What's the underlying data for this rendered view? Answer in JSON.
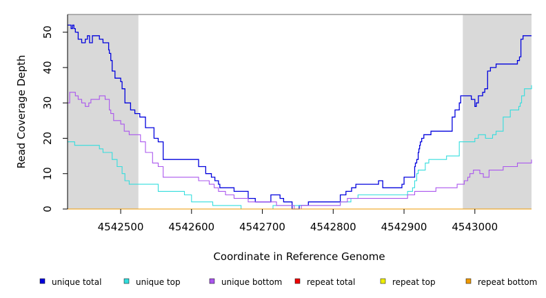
{
  "chart_data": {
    "type": "line",
    "title": "",
    "xlabel": "Coordinate in Reference Genome",
    "ylabel": "Read Coverage Depth",
    "xlim": [
      4542425,
      4543080
    ],
    "ylim": [
      0,
      55
    ],
    "x_ticks": [
      4542500,
      4542600,
      4542700,
      4542800,
      4542900,
      4543000
    ],
    "x_tick_labels": [
      "4542500",
      "4542600",
      "4542700",
      "4542800",
      "4542900",
      "4543000"
    ],
    "y_ticks": [
      0,
      10,
      20,
      30,
      40,
      50
    ],
    "y_tick_labels": [
      "0",
      "10",
      "20",
      "30",
      "40",
      "50"
    ],
    "grid": false,
    "legend_position": "bottom",
    "shaded_regions": [
      {
        "x0": 4542425,
        "x1": 4542525,
        "color": "#d9d9d9"
      },
      {
        "x0": 4542983,
        "x1": 4543080,
        "color": "#d9d9d9"
      }
    ],
    "top_line": {
      "y": 55,
      "color": "#999999"
    },
    "series": [
      {
        "name": "unique total",
        "color": "#0000dd",
        "x": [
          4542425,
          4542430,
          4542431,
          4542432,
          4542434,
          4542436,
          4542440,
          4542445,
          4542450,
          4542453,
          4542456,
          4542460,
          4542470,
          4542475,
          4542480,
          4542483,
          4542484,
          4542486,
          4542488,
          4542492,
          4542498,
          4542500,
          4542502,
          4542506,
          4542514,
          4542520,
          4542527,
          4542535,
          4542547,
          4542553,
          4542560,
          4542575,
          4542585,
          4542590,
          4542610,
          4542620,
          4542628,
          4542630,
          4542633,
          4542638,
          4542640,
          4542660,
          4542665,
          4542680,
          4542690,
          4542700,
          4542712,
          4542725,
          4542730,
          4542742,
          4542752,
          4542765,
          4542778,
          4542790,
          4542797,
          4542810,
          4542818,
          4542822,
          4542826,
          4542830,
          4542832,
          4542840,
          4542848,
          4542850,
          4542855,
          4542860,
          4542862,
          4542864,
          4542866,
          4542870,
          4542880,
          4542890,
          4542895,
          4542897,
          4542900,
          4542915,
          4542916,
          4542918,
          4542920,
          4542921,
          4542922,
          4542923,
          4542925,
          4542926,
          4542928,
          4542932,
          4542938,
          4542950,
          4542960,
          4542968,
          4542972,
          4542975,
          4542978,
          4542980,
          4542986,
          4542995,
          4543000,
          4543002,
          4543005,
          4543008,
          4543011,
          4543014,
          4543018,
          4543022,
          4543025,
          4543030,
          4543033,
          4543045,
          4543060,
          4543063,
          4543065,
          4543068,
          4543072,
          4543080
        ],
        "y": [
          52,
          51,
          51,
          52,
          51,
          50,
          48,
          47,
          48,
          49,
          47,
          49,
          48,
          47,
          47,
          45,
          44,
          42,
          39,
          37,
          37,
          36,
          34,
          30,
          28,
          27,
          26,
          23,
          20,
          19,
          14,
          14,
          14,
          14,
          12,
          10,
          9,
          9,
          8,
          7,
          6,
          5,
          5,
          3,
          2,
          2,
          4,
          3,
          2,
          0,
          1,
          2,
          2,
          2,
          2,
          4,
          5,
          5,
          6,
          6,
          7,
          7,
          7,
          7,
          7,
          7,
          7,
          8,
          8,
          6,
          6,
          6,
          6,
          7,
          9,
          12,
          13,
          14,
          16,
          17,
          18,
          19,
          20,
          20,
          21,
          21,
          22,
          22,
          22,
          26,
          28,
          28,
          30,
          32,
          32,
          31,
          29,
          30,
          32,
          32,
          33,
          34,
          39,
          40,
          40,
          41,
          41,
          41,
          42,
          43,
          48,
          49,
          49,
          49
        ],
        "visible": true
      },
      {
        "name": "unique top",
        "color": "#33dddd",
        "x": [
          4542425,
          4542430,
          4542435,
          4542440,
          4542450,
          4542460,
          4542470,
          4542475,
          4542480,
          4542484,
          4542488,
          4542495,
          4542502,
          4542506,
          4542512,
          4542525,
          4542553,
          4542560,
          4542585,
          4542590,
          4542600,
          4542610,
          4542620,
          4542630,
          4542650,
          4542660,
          4542670,
          4542700,
          4542715,
          4542740,
          4542790,
          4542810,
          4542820,
          4542825,
          4542835,
          4542860,
          4542880,
          4542895,
          4542905,
          4542910,
          4542912,
          4542915,
          4542918,
          4542920,
          4542930,
          4542935,
          4542940,
          4542960,
          4542968,
          4542972,
          4542978,
          4542985,
          4542995,
          4543000,
          4543005,
          4543010,
          4543015,
          4543020,
          4543025,
          4543030,
          4543040,
          4543050,
          4543060,
          4543062,
          4543064,
          4543066,
          4543070,
          4543080
        ],
        "y": [
          19,
          19,
          18,
          18,
          18,
          18,
          17,
          16,
          16,
          16,
          14,
          12,
          10,
          8,
          7,
          7,
          5,
          5,
          5,
          4,
          2,
          2,
          2,
          1,
          1,
          1,
          0,
          0,
          1,
          1,
          1,
          2,
          2,
          3,
          4,
          4,
          4,
          4,
          5,
          5,
          6,
          8,
          10,
          11,
          13,
          14,
          14,
          15,
          15,
          15,
          19,
          19,
          19,
          20,
          21,
          21,
          20,
          20,
          21,
          22,
          26,
          28,
          28,
          29,
          30,
          32,
          34,
          35
        ],
        "visible": true
      },
      {
        "name": "unique bottom",
        "color": "#aa55ee",
        "x": [
          4542425,
          4542428,
          4542432,
          4542436,
          4542440,
          4542445,
          4542450,
          4542455,
          4542458,
          4542470,
          4542475,
          4542478,
          4542480,
          4542484,
          4542486,
          4542490,
          4542495,
          4542500,
          4542505,
          4542512,
          4542520,
          4542528,
          4542535,
          4542545,
          4542553,
          4542560,
          4542575,
          4542590,
          4542610,
          4542620,
          4542625,
          4542632,
          4542638,
          4542648,
          4542660,
          4542680,
          4542700,
          4542720,
          4542745,
          4542755,
          4542790,
          4542800,
          4542810,
          4542820,
          4542860,
          4542870,
          4542880,
          4542890,
          4542900,
          4542905,
          4542915,
          4542930,
          4542945,
          4542955,
          4542965,
          4542975,
          4542980,
          4542985,
          4542990,
          4542993,
          4542998,
          4543003,
          4543007,
          4543012,
          4543020,
          4543033,
          4543040,
          4543050,
          4543060,
          4543070,
          4543080
        ],
        "y": [
          30,
          33,
          33,
          32,
          31,
          30,
          29,
          30,
          31,
          32,
          32,
          31,
          31,
          28,
          27,
          25,
          25,
          24,
          22,
          21,
          21,
          19,
          16,
          13,
          12,
          9,
          9,
          9,
          8,
          8,
          7,
          6,
          5,
          4,
          3,
          2,
          2,
          1,
          0,
          1,
          1,
          1,
          2,
          3,
          3,
          3,
          3,
          3,
          3,
          4,
          5,
          5,
          6,
          6,
          6,
          7,
          7,
          8,
          9,
          10,
          11,
          11,
          10,
          9,
          11,
          11,
          12,
          12,
          13,
          13,
          14
        ],
        "visible": true
      },
      {
        "name": "repeat total",
        "color": "#ee0000",
        "x": [
          4542425,
          4543080
        ],
        "y": [
          0,
          0
        ],
        "visible": false
      },
      {
        "name": "repeat top",
        "color": "#eeee00",
        "x": [
          4542425,
          4543080
        ],
        "y": [
          0,
          0
        ],
        "visible": false
      },
      {
        "name": "repeat bottom",
        "color": "#ee9900",
        "x": [
          4542425,
          4543080
        ],
        "y": [
          0,
          0
        ],
        "visible": true
      }
    ]
  }
}
